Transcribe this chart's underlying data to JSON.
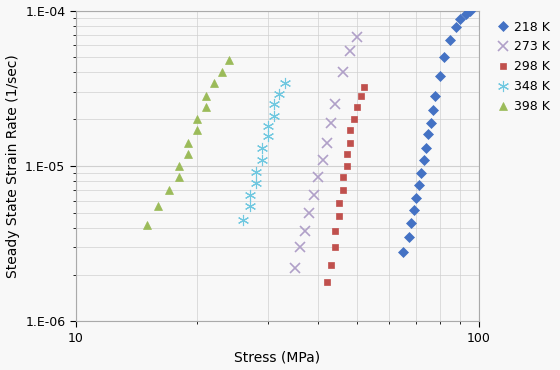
{
  "title": "",
  "xlabel": "Stress (MPa)",
  "ylabel": "Steady State Strain Rate (1/sec)",
  "xlim": [
    10,
    100
  ],
  "ylim": [
    1e-06,
    0.0001
  ],
  "background_color": "#f8f8f8",
  "grid_color": "#d0d0d0",
  "series": {
    "218K": {
      "color": "#4472C4",
      "marker": "D",
      "markersize": 5,
      "stress": [
        65,
        67,
        68,
        69,
        70,
        71,
        72,
        73,
        74,
        75,
        76,
        77,
        78,
        80,
        82,
        85,
        88,
        90,
        93,
        95
      ],
      "strain_rate": [
        2.8e-06,
        3.5e-06,
        4.3e-06,
        5.2e-06,
        6.2e-06,
        7.5e-06,
        9e-06,
        1.1e-05,
        1.3e-05,
        1.6e-05,
        1.9e-05,
        2.3e-05,
        2.8e-05,
        3.8e-05,
        5e-05,
        6.5e-05,
        7.8e-05,
        8.8e-05,
        9.5e-05,
        0.0001
      ]
    },
    "273K": {
      "color": "#b0a0c8",
      "marker": "x",
      "markersize": 7,
      "stress": [
        35,
        36,
        37,
        38,
        39,
        40,
        41,
        42,
        43,
        44,
        46,
        48,
        50
      ],
      "strain_rate": [
        2.2e-06,
        3e-06,
        3.8e-06,
        5e-06,
        6.5e-06,
        8.5e-06,
        1.1e-05,
        1.4e-05,
        1.9e-05,
        2.5e-05,
        4e-05,
        5.5e-05,
        6.8e-05
      ]
    },
    "298K": {
      "color": "#C0504D",
      "marker": "s",
      "markersize": 5,
      "stress": [
        42,
        43,
        44,
        44,
        45,
        45,
        46,
        46,
        47,
        47,
        48,
        48,
        49,
        50,
        51,
        52
      ],
      "strain_rate": [
        1.8e-06,
        2.3e-06,
        3e-06,
        3.8e-06,
        4.8e-06,
        5.8e-06,
        7e-06,
        8.5e-06,
        1e-05,
        1.2e-05,
        1.4e-05,
        1.7e-05,
        2e-05,
        2.4e-05,
        2.8e-05,
        3.2e-05
      ]
    },
    "348K": {
      "color": "#70c8e0",
      "marker": "x",
      "markersize": 6,
      "stress": [
        26,
        27,
        27,
        28,
        28,
        29,
        29,
        30,
        30,
        31,
        31,
        32,
        33
      ],
      "strain_rate": [
        4.5e-06,
        5.5e-06,
        6.5e-06,
        7.8e-06,
        9.2e-06,
        1.1e-05,
        1.3e-05,
        1.55e-05,
        1.8e-05,
        2.1e-05,
        2.5e-05,
        2.9e-05,
        3.4e-05
      ]
    },
    "398K": {
      "color": "#9BBB59",
      "marker": "^",
      "markersize": 6,
      "stress": [
        15,
        16,
        17,
        18,
        18,
        19,
        19,
        20,
        20,
        21,
        21,
        22,
        23,
        24
      ],
      "strain_rate": [
        4.2e-06,
        5.5e-06,
        7e-06,
        8.5e-06,
        1e-05,
        1.2e-05,
        1.4e-05,
        1.7e-05,
        2e-05,
        2.4e-05,
        2.8e-05,
        3.4e-05,
        4e-05,
        4.8e-05
      ]
    }
  },
  "legend_labels": [
    "218 K",
    "273 K",
    "298 K",
    "348 K",
    "398 K"
  ],
  "legend_keys": [
    "218K",
    "273K",
    "298K",
    "348K",
    "398K"
  ]
}
